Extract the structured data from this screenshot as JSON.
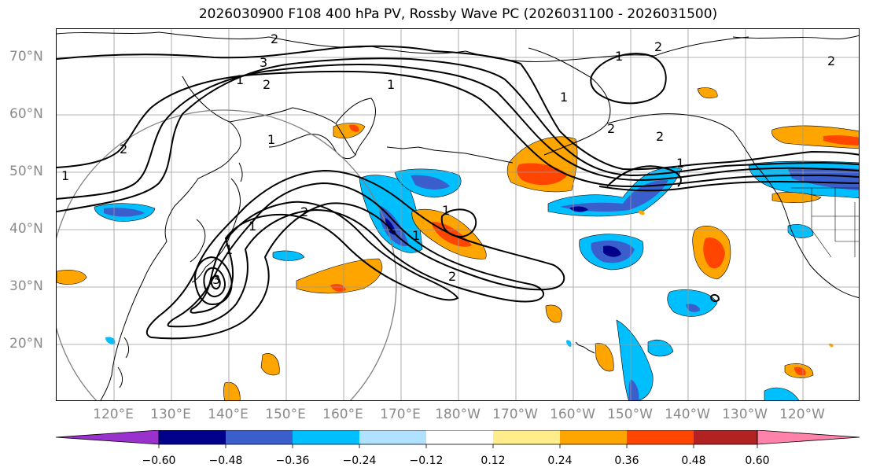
{
  "title": "2026030900 F108 400 hPa PV, Rossby Wave PC (2026031100 - 2026031500)",
  "map": {
    "lat_labels": [
      "70°N",
      "60°N",
      "50°N",
      "40°N",
      "30°N",
      "20°N"
    ],
    "lon_labels": [
      "120°E",
      "130°E",
      "140°E",
      "150°E",
      "160°E",
      "170°E",
      "180°W",
      "170°W",
      "160°W",
      "150°W",
      "140°W",
      "130°W",
      "120°W"
    ],
    "contour_labels": [
      "2",
      "3",
      "2",
      "1",
      "1",
      "1",
      "2",
      "1",
      "2",
      "1",
      "1",
      "2",
      "2",
      "1",
      "1",
      "1",
      "2",
      "2",
      "3",
      "1",
      "1",
      "2"
    ]
  },
  "colorbar": {
    "colors": [
      "#9932cc",
      "#00008b",
      "#3a5fcd",
      "#00bfff",
      "#b0e2ff",
      "#ffffff",
      "#ffec8b",
      "#ffa500",
      "#ff4500",
      "#b22222",
      "#ff82ab"
    ],
    "ticks": [
      "−0.60",
      "−0.48",
      "−0.36",
      "−0.24",
      "−0.12",
      "0.12",
      "0.24",
      "0.36",
      "0.48",
      "0.60"
    ]
  }
}
